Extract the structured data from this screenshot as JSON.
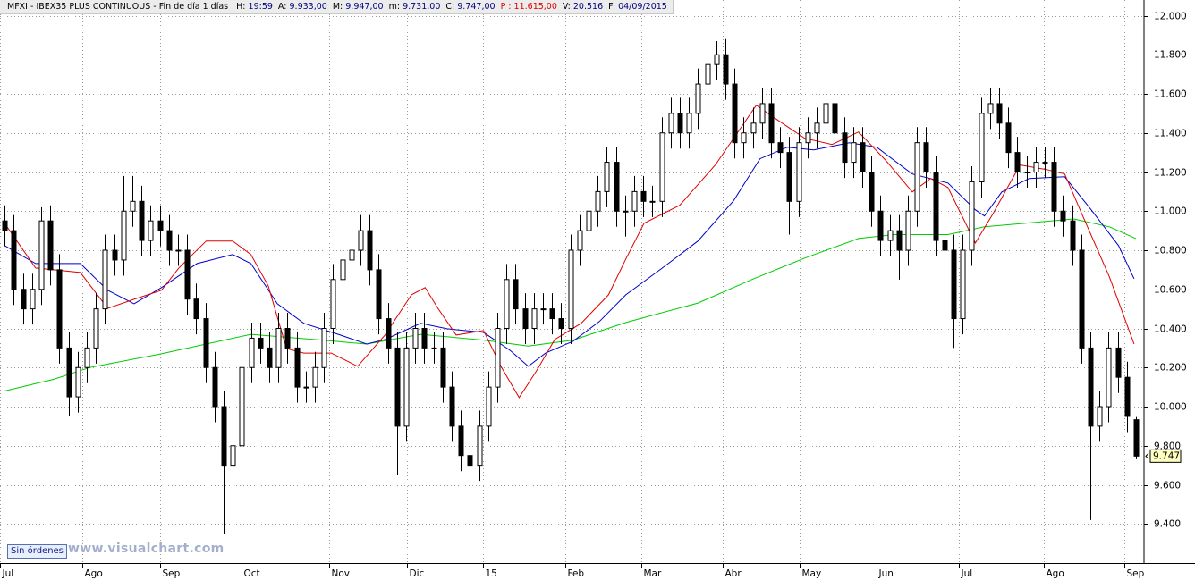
{
  "header": {
    "symbol": "MFXI - IBEX35 PLUS CONTINUOUS - Fin de día 1 días",
    "value_color": "#000080",
    "fields": [
      {
        "label": "H:",
        "value": "19:59"
      },
      {
        "label": "A:",
        "value": "9.933,00"
      },
      {
        "label": "M:",
        "value": "9.947,00"
      },
      {
        "label": "m:",
        "value": "9.731,00"
      },
      {
        "label": "C:",
        "value": "9.747,00"
      },
      {
        "label": "P :",
        "value": "11.615,00",
        "color": "#e00000"
      },
      {
        "label": "V:",
        "value": "20.516"
      },
      {
        "label": "F:",
        "value": "04/09/2015"
      }
    ]
  },
  "footer": {
    "status": "Sin órdenes",
    "watermark": "www.visualchart.com"
  },
  "chart_data": {
    "type": "candlestick",
    "grid": true,
    "up_color": "#ffffff",
    "down_color": "#000000",
    "wick_color": "#000000",
    "xlim": [
      -0.5,
      124.5
    ],
    "ylim": [
      9200,
      12080
    ],
    "yticks": [
      {
        "value": 12000,
        "label": "12.000"
      },
      {
        "value": 11800,
        "label": "11.800"
      },
      {
        "value": 11600,
        "label": "11.600"
      },
      {
        "value": 11400,
        "label": "11.400"
      },
      {
        "value": 11200,
        "label": "11.200"
      },
      {
        "value": 11000,
        "label": "11.000"
      },
      {
        "value": 10800,
        "label": "10.800"
      },
      {
        "value": 10600,
        "label": "10.600"
      },
      {
        "value": 10400,
        "label": "10.400"
      },
      {
        "value": 10200,
        "label": "10.200"
      },
      {
        "value": 10000,
        "label": "10.000"
      },
      {
        "value": 9800,
        "label": "9.800"
      },
      {
        "value": 9600,
        "label": "9.600"
      },
      {
        "value": 9400,
        "label": "9.400"
      }
    ],
    "xticks": [
      {
        "value": -0.5,
        "label": "Jul"
      },
      {
        "value": 8.5,
        "label": "Ago"
      },
      {
        "value": 17,
        "label": "Sep"
      },
      {
        "value": 26,
        "label": "Oct"
      },
      {
        "value": 35.6,
        "label": "Nov"
      },
      {
        "value": 44.1,
        "label": "Dic"
      },
      {
        "value": 52.4,
        "label": "15"
      },
      {
        "value": 61.5,
        "label": "Feb"
      },
      {
        "value": 69.8,
        "label": "Mar"
      },
      {
        "value": 78.7,
        "label": "Abr"
      },
      {
        "value": 87.1,
        "label": "May"
      },
      {
        "value": 95.6,
        "label": "Jun"
      },
      {
        "value": 104.6,
        "label": "Jul"
      },
      {
        "value": 113.9,
        "label": "Ago"
      },
      {
        "value": 122.7,
        "label": "Sep"
      }
    ],
    "open": [
      10950,
      10900,
      10600,
      10500,
      10600,
      10950,
      10700,
      10300,
      10050,
      10200,
      10300,
      10500,
      10800,
      10750,
      11000,
      11050,
      10850,
      10950,
      10900,
      10800,
      10800,
      10550,
      10450,
      10200,
      10000,
      9700,
      9800,
      10200,
      10350,
      10300,
      10200,
      10400,
      10300,
      10100,
      10100,
      10200,
      10400,
      10650,
      10750,
      10800,
      10900,
      10700,
      10450,
      10300,
      9900,
      10300,
      10400,
      10300,
      10300,
      10100,
      9900,
      9750,
      9700,
      9900,
      10100,
      10400,
      10650,
      10500,
      10400,
      10500,
      10500,
      10450,
      10400,
      10800,
      10900,
      11000,
      11100,
      11250,
      11000,
      11000,
      11100,
      11050,
      11050,
      11400,
      11500,
      11400,
      11500,
      11650,
      11750,
      11800,
      11650,
      11350,
      11400,
      11450,
      11550,
      11350,
      11300,
      11050,
      11350,
      11400,
      11450,
      11550,
      11400,
      11250,
      11350,
      11200,
      11000,
      10850,
      10900,
      10800,
      11000,
      11350,
      11200,
      10850,
      10800,
      10450,
      10800,
      11150,
      11500,
      11550,
      11450,
      11300,
      11200,
      11200,
      11250,
      11250,
      11000,
      10950,
      10800,
      10300,
      9900,
      10000,
      10300,
      10150,
      9933
    ],
    "high": [
      11030,
      10980,
      10680,
      10680,
      11020,
      11030,
      10780,
      10380,
      10280,
      10380,
      10580,
      10880,
      10880,
      11180,
      11180,
      11130,
      11030,
      11030,
      10980,
      10880,
      10880,
      10630,
      10530,
      10280,
      10080,
      9880,
      10280,
      10430,
      10430,
      10380,
      10480,
      10480,
      10380,
      10180,
      10280,
      10480,
      10730,
      10830,
      10880,
      10980,
      10980,
      10780,
      10530,
      10380,
      10380,
      10480,
      10480,
      10380,
      10380,
      10180,
      9980,
      9830,
      9980,
      10180,
      10480,
      10730,
      10730,
      10580,
      10580,
      10580,
      10580,
      10530,
      10880,
      10980,
      11080,
      11180,
      11330,
      11330,
      11080,
      11180,
      11180,
      11130,
      11480,
      11580,
      11580,
      11580,
      11730,
      11830,
      11870,
      11880,
      11730,
      11480,
      11530,
      11630,
      11630,
      11430,
      11380,
      11430,
      11480,
      11530,
      11630,
      11630,
      11480,
      11430,
      11430,
      11280,
      11080,
      10980,
      10980,
      11080,
      11430,
      11430,
      11280,
      10930,
      10880,
      10880,
      11230,
      11580,
      11630,
      11630,
      11530,
      11380,
      11280,
      11330,
      11330,
      11330,
      11080,
      11030,
      10880,
      10380,
      10080,
      10380,
      10380,
      10230,
      9947
    ],
    "low": [
      10820,
      10520,
      10420,
      10420,
      10520,
      10620,
      10220,
      9950,
      9970,
      10120,
      10220,
      10420,
      10670,
      10670,
      10920,
      10770,
      10770,
      10820,
      10720,
      10720,
      10470,
      10370,
      10120,
      9920,
      9350,
      9620,
      9720,
      10120,
      10220,
      10120,
      10120,
      10220,
      10020,
      10020,
      10020,
      10120,
      10320,
      10570,
      10670,
      10720,
      10620,
      10370,
      10220,
      9650,
      9820,
      10220,
      10220,
      10220,
      10020,
      9820,
      9670,
      9580,
      9620,
      9820,
      10020,
      10320,
      10420,
      10320,
      10320,
      10420,
      10370,
      10320,
      10320,
      10720,
      10820,
      10920,
      11020,
      10920,
      10870,
      10920,
      10970,
      10970,
      10970,
      11320,
      11320,
      11320,
      11420,
      11570,
      11670,
      11570,
      11270,
      11270,
      11320,
      11370,
      11270,
      11220,
      10880,
      10970,
      11270,
      11320,
      11370,
      11320,
      11170,
      11170,
      11120,
      10920,
      10770,
      10770,
      10650,
      10720,
      10920,
      11120,
      10770,
      10720,
      10300,
      10370,
      10720,
      11070,
      11420,
      11370,
      11220,
      11120,
      11120,
      11120,
      11170,
      10920,
      10870,
      10720,
      10220,
      9420,
      9820,
      9920,
      10070,
      9870,
      9731
    ],
    "close": [
      10900,
      10600,
      10500,
      10600,
      10950,
      10700,
      10300,
      10050,
      10200,
      10300,
      10500,
      10800,
      10750,
      11000,
      11050,
      10850,
      10950,
      10900,
      10800,
      10800,
      10550,
      10450,
      10200,
      10000,
      9700,
      9800,
      10200,
      10350,
      10300,
      10200,
      10400,
      10300,
      10100,
      10100,
      10200,
      10400,
      10650,
      10750,
      10800,
      10900,
      10700,
      10450,
      10300,
      9900,
      10300,
      10400,
      10300,
      10300,
      10100,
      9900,
      9750,
      9700,
      9900,
      10100,
      10400,
      10650,
      10500,
      10400,
      10500,
      10500,
      10450,
      10400,
      10800,
      10900,
      11000,
      11100,
      11250,
      11000,
      11000,
      11100,
      11050,
      11050,
      11400,
      11500,
      11400,
      11500,
      11650,
      11750,
      11800,
      11650,
      11350,
      11400,
      11450,
      11550,
      11350,
      11300,
      11050,
      11350,
      11400,
      11450,
      11550,
      11400,
      11250,
      11350,
      11200,
      11000,
      10850,
      10900,
      10800,
      11000,
      11350,
      11200,
      10850,
      10800,
      10450,
      10800,
      11150,
      11500,
      11550,
      11450,
      11300,
      11200,
      11200,
      11250,
      11250,
      11000,
      10950,
      10800,
      10300,
      9900,
      10000,
      10300,
      10150,
      9950,
      9747
    ],
    "last_value_label": "9.747",
    "series": [
      {
        "type": "line",
        "color": "#00cc00",
        "x": [
          0,
          5.4,
          9.3,
          17.2,
          27,
          34.8,
          39.7,
          45.6,
          52.5,
          57.4,
          62.3,
          68.1,
          76,
          81.9,
          87.7,
          93.6,
          97.5,
          103.4,
          107.4,
          112.3,
          117.2,
          121.1,
          124
        ],
        "values": [
          10080,
          10140,
          10200,
          10270,
          10370,
          10340,
          10320,
          10370,
          10340,
          10310,
          10340,
          10430,
          10530,
          10650,
          10760,
          10860,
          10880,
          10880,
          10920,
          10940,
          10960,
          10920,
          10860
        ]
      },
      {
        "type": "line",
        "color": "#0000cc",
        "x": [
          0,
          3.4,
          8.3,
          11.3,
          14.2,
          17.2,
          21.1,
          25,
          27,
          29.9,
          32.8,
          36.8,
          39.7,
          41.7,
          45.6,
          48.5,
          52.5,
          55.4,
          57.4,
          59.3,
          62.3,
          65.2,
          68.1,
          72.1,
          76,
          79.9,
          82.8,
          85.8,
          88.7,
          92.6,
          95.6,
          99.5,
          103.4,
          106.4,
          107.4,
          109.3,
          112.3,
          116.2,
          119.1,
          122.1,
          123.8
        ],
        "values": [
          10824,
          10732,
          10732,
          10595,
          10526,
          10609,
          10732,
          10778,
          10732,
          10526,
          10426,
          10366,
          10320,
          10343,
          10426,
          10398,
          10380,
          10288,
          10206,
          10274,
          10334,
          10435,
          10572,
          10709,
          10847,
          11053,
          11268,
          11327,
          11313,
          11350,
          11327,
          11190,
          11144,
          11007,
          10975,
          11098,
          11167,
          11176,
          11007,
          10824,
          10654
        ]
      },
      {
        "type": "line",
        "color": "#e00000",
        "x": [
          0,
          3.4,
          8.3,
          11.3,
          14.2,
          17.2,
          19.1,
          22.1,
          25,
          27,
          28.9,
          30.9,
          32.8,
          35.8,
          38.7,
          41.7,
          44.6,
          46.1,
          47.5,
          49.5,
          52.5,
          54.4,
          56.4,
          58.3,
          60.3,
          63.2,
          66.2,
          68.1,
          70.1,
          74,
          77.9,
          82.4,
          84.8,
          87.7,
          90.7,
          93.6,
          96.6,
          99.5,
          101.5,
          103.4,
          106.4,
          108.3,
          111.3,
          114.2,
          116.2,
          118.1,
          121.1,
          123.8
        ],
        "values": [
          10938,
          10709,
          10686,
          10503,
          10549,
          10595,
          10709,
          10847,
          10847,
          10778,
          10618,
          10297,
          10274,
          10274,
          10206,
          10366,
          10572,
          10609,
          10503,
          10366,
          10389,
          10206,
          10046,
          10183,
          10343,
          10426,
          10572,
          10755,
          10938,
          11030,
          11236,
          11542,
          11464,
          11373,
          11341,
          11405,
          11259,
          11098,
          11167,
          11121,
          10837,
          10984,
          11236,
          11213,
          11190,
          10984,
          10664,
          10320
        ]
      }
    ]
  }
}
